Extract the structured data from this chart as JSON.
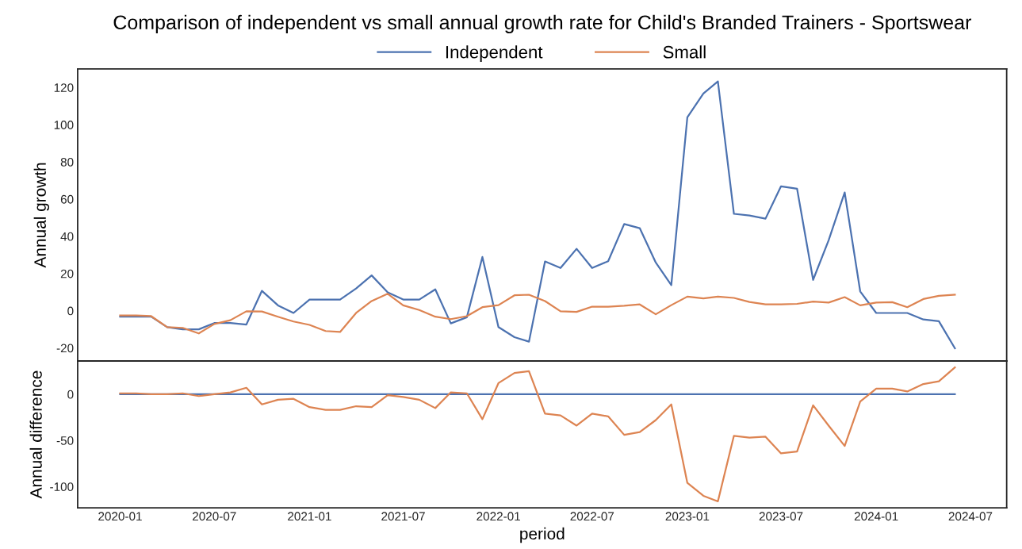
{
  "chart_data": [
    {
      "type": "line",
      "title": "Comparison of independent vs small annual growth rate for Child's Branded Trainers - Sportswear",
      "ylabel": "Annual growth",
      "legend": "top",
      "grid": false,
      "tick_labels": "y",
      "xlim": [
        "2019-10-11",
        "2024-09-09"
      ],
      "ylim": [
        -27,
        130
      ],
      "yticks": [
        -20,
        0,
        20,
        40,
        60,
        80,
        100,
        120
      ],
      "x": [
        "2020-01",
        "2020-02",
        "2020-03",
        "2020-04",
        "2020-05",
        "2020-06",
        "2020-07",
        "2020-08",
        "2020-09",
        "2020-10",
        "2020-11",
        "2020-12",
        "2021-01",
        "2021-02",
        "2021-03",
        "2021-04",
        "2021-05",
        "2021-06",
        "2021-07",
        "2021-08",
        "2021-09",
        "2021-10",
        "2021-11",
        "2021-12",
        "2022-01",
        "2022-02",
        "2022-03",
        "2022-04",
        "2022-05",
        "2022-06",
        "2022-07",
        "2022-08",
        "2022-09",
        "2022-10",
        "2022-11",
        "2022-12",
        "2023-01",
        "2023-02",
        "2023-03",
        "2023-04",
        "2023-05",
        "2023-06",
        "2023-07",
        "2023-08",
        "2023-09",
        "2023-10",
        "2023-11",
        "2023-12",
        "2024-01",
        "2024-02",
        "2024-03",
        "2024-04",
        "2024-05",
        "2024-06"
      ],
      "series": [
        {
          "name": "Independent",
          "color": "#4c72b0",
          "values": [
            -3.2,
            -3.2,
            -3.2,
            -8.8,
            -10,
            -10,
            -6.6,
            -6.6,
            -7.4,
            10.7,
            2.9,
            -1.2,
            6,
            6,
            6,
            12,
            19,
            9.9,
            6,
            6,
            11.5,
            -6.8,
            -3.5,
            28.9,
            -8.8,
            -14.2,
            -16.6,
            26.5,
            23,
            33.3,
            23,
            26.6,
            46.6,
            44.4,
            25.9,
            13.8,
            104,
            116.8,
            123.3,
            52.1,
            51.2,
            49.5,
            66.9,
            65.6,
            16.6,
            37.9,
            63.6,
            10.4,
            -1.2,
            -1.2,
            -1.2,
            -4.7,
            -5.6,
            -20.2
          ]
        },
        {
          "name": "Small",
          "color": "#dd8452",
          "values": [
            -2.5,
            -2.5,
            -2.9,
            -8.8,
            -9.2,
            -12.2,
            -7.1,
            -5.1,
            -0.3,
            -0.4,
            -3.2,
            -5.8,
            -7.6,
            -10.9,
            -11.4,
            -1.2,
            5.2,
            9.1,
            2.9,
            0.4,
            -3.2,
            -4.5,
            -2.9,
            1.9,
            3.0,
            8.3,
            8.6,
            5.2,
            -0.3,
            -0.6,
            2.2,
            2.2,
            2.7,
            3.4,
            -1.9,
            3.0,
            7.6,
            6.6,
            7.6,
            6.9,
            4.7,
            3.4,
            3.4,
            3.7,
            4.9,
            4.4,
            7.3,
            2.9,
            4.4,
            4.6,
            1.9,
            6.3,
            8.0,
            8.6
          ]
        }
      ]
    },
    {
      "type": "line",
      "xlabel": "period",
      "ylabel": "Annual difference",
      "grid": false,
      "xlim": [
        "2019-10-11",
        "2024-09-09"
      ],
      "ylim": [
        -123,
        36
      ],
      "yticks": [
        -100,
        -50,
        0
      ],
      "xticks": [
        {
          "value": "2020-01-01",
          "label": "2020-01"
        },
        {
          "value": "2020-07-01",
          "label": "2020-07"
        },
        {
          "value": "2021-01-01",
          "label": "2021-01"
        },
        {
          "value": "2021-07-01",
          "label": "2021-07"
        },
        {
          "value": "2022-01-01",
          "label": "2022-01"
        },
        {
          "value": "2022-07-01",
          "label": "2022-07"
        },
        {
          "value": "2023-01-01",
          "label": "2023-01"
        },
        {
          "value": "2023-07-01",
          "label": "2023-07"
        },
        {
          "value": "2024-01-01",
          "label": "2024-01"
        },
        {
          "value": "2024-07-01",
          "label": "2024-07"
        }
      ],
      "x": [
        "2020-01",
        "2020-02",
        "2020-03",
        "2020-04",
        "2020-05",
        "2020-06",
        "2020-07",
        "2020-08",
        "2020-09",
        "2020-10",
        "2020-11",
        "2020-12",
        "2021-01",
        "2021-02",
        "2021-03",
        "2021-04",
        "2021-05",
        "2021-06",
        "2021-07",
        "2021-08",
        "2021-09",
        "2021-10",
        "2021-11",
        "2021-12",
        "2022-01",
        "2022-02",
        "2022-03",
        "2022-04",
        "2022-05",
        "2022-06",
        "2022-07",
        "2022-08",
        "2022-09",
        "2022-10",
        "2022-11",
        "2022-12",
        "2023-01",
        "2023-02",
        "2023-03",
        "2023-04",
        "2023-05",
        "2023-06",
        "2023-07",
        "2023-08",
        "2023-09",
        "2023-10",
        "2023-11",
        "2023-12",
        "2024-01",
        "2024-02",
        "2024-03",
        "2024-04",
        "2024-05",
        "2024-06"
      ],
      "series": [
        {
          "color": "#4c72b0",
          "values": [
            0,
            0,
            0,
            0,
            0,
            0,
            0,
            0,
            0,
            0,
            0,
            0,
            0,
            0,
            0,
            0,
            0,
            0,
            0,
            0,
            0,
            0,
            0,
            0,
            0,
            0,
            0,
            0,
            0,
            0,
            0,
            0,
            0,
            0,
            0,
            0,
            0,
            0,
            0,
            0,
            0,
            0,
            0,
            0,
            0,
            0,
            0,
            0,
            0,
            0,
            0,
            0,
            0,
            0
          ]
        },
        {
          "color": "#dd8452",
          "values": [
            1,
            1,
            0,
            0,
            1,
            -2,
            0,
            2,
            7,
            -11,
            -6,
            -5,
            -14,
            -17,
            -17,
            -13,
            -14,
            -1,
            -3,
            -6,
            -15,
            2,
            1,
            -27,
            12,
            23,
            25,
            -21,
            -23,
            -34,
            -21,
            -24,
            -44,
            -41,
            -28,
            -11,
            -96,
            -110,
            -116,
            -45,
            -47,
            -46,
            -64,
            -62,
            -12,
            -34,
            -56,
            -8,
            6,
            6,
            3,
            11,
            14,
            29
          ]
        }
      ]
    }
  ]
}
